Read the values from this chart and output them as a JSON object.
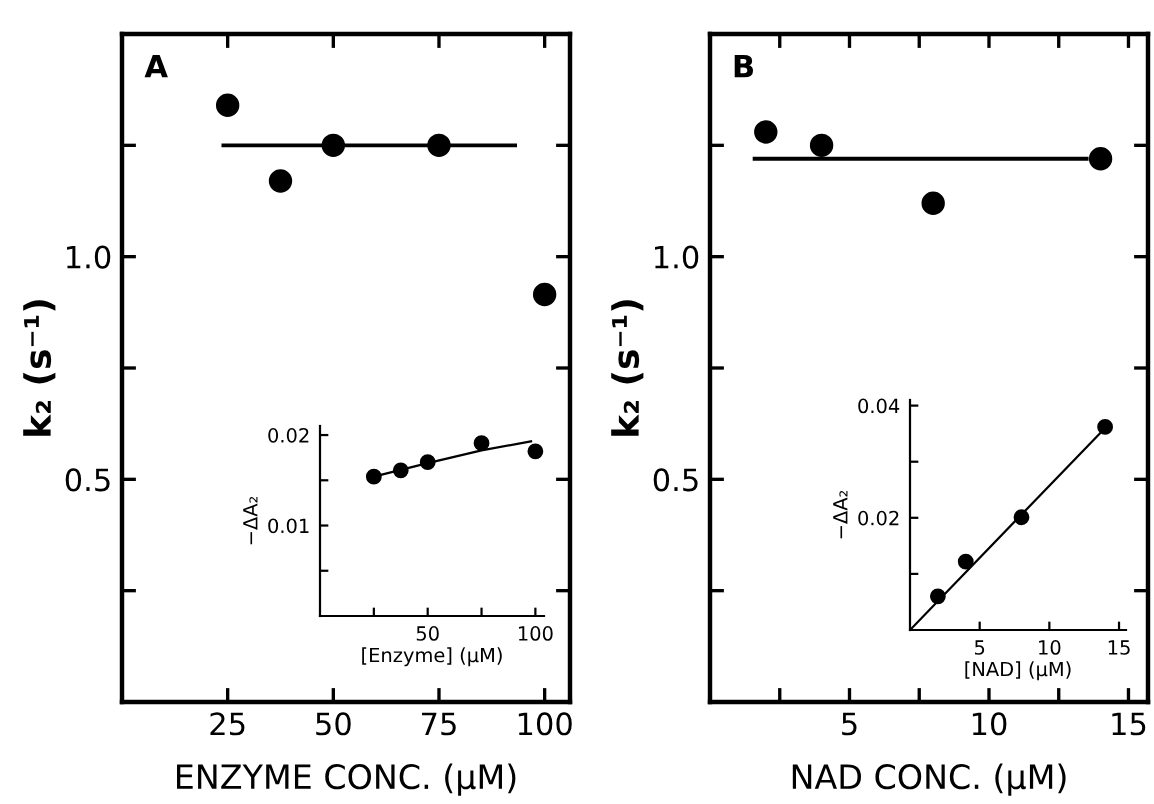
{
  "chart_data": [
    {
      "type": "scatter",
      "title": "A",
      "xlabel": "ENZYME CONC. (μM)",
      "ylabel": "k₂ (s⁻¹)",
      "xlim": [
        0,
        106
      ],
      "ylim": [
        0,
        1.5
      ],
      "xticks": [
        25,
        50,
        75,
        100
      ],
      "yticks": [
        {
          "value": 0.25,
          "label": null
        },
        0.5,
        {
          "value": 0.75,
          "label": null
        },
        {
          "value": 1.0,
          "label": "1.0"
        },
        {
          "value": 1.25,
          "label": null
        }
      ],
      "series": [
        {
          "color": "#000000",
          "marker": "circle",
          "x": [
            25,
            37.5,
            50,
            75,
            100
          ],
          "values": [
            1.34,
            1.17,
            1.25,
            1.25,
            0.915
          ]
        },
        {
          "type": "line",
          "marker": "none",
          "color": "#000000",
          "line_style": "solid",
          "x": [
            24,
            93
          ],
          "values": [
            1.25,
            1.25
          ]
        }
      ]
    },
    {
      "type": "scatter",
      "xlabel": "[Enzyme] (μM)",
      "ylabel": "−ΔA₂",
      "xlim": [
        0,
        104
      ],
      "ylim": [
        0,
        0.021
      ],
      "xticks": [
        {
          "value": 25,
          "label": null
        },
        50,
        {
          "value": 75,
          "label": null
        },
        100
      ],
      "yticks": [
        {
          "value": 0.005,
          "label": null
        },
        0.01,
        {
          "value": 0.015,
          "label": null
        },
        0.02
      ],
      "series": [
        {
          "color": "#000000",
          "marker": "circle",
          "x": [
            25,
            37.5,
            50,
            75,
            100
          ],
          "values": [
            0.0154,
            0.0161,
            0.017,
            0.0191,
            0.0182
          ]
        },
        {
          "type": "line",
          "marker": "none",
          "color": "#000000",
          "line_style": "solid",
          "x": [
            25,
            50,
            75,
            98
          ],
          "values": [
            0.0154,
            0.0169,
            0.0183,
            0.0193
          ]
        }
      ]
    },
    {
      "type": "scatter",
      "title": "B",
      "xlabel": "NAD CONC. (μM)",
      "ylabel": "k₂ (s⁻¹)",
      "xlim": [
        0,
        15.7
      ],
      "ylim": [
        0,
        1.5
      ],
      "xticks": [
        {
          "value": 2.5,
          "label": null
        },
        5,
        {
          "value": 7.5,
          "label": null
        },
        10,
        {
          "value": 12.5,
          "label": null
        },
        15
      ],
      "yticks": [
        {
          "value": 0.25,
          "label": null
        },
        0.5,
        {
          "value": 0.75,
          "label": null
        },
        {
          "value": 1.0,
          "label": "1.0"
        },
        {
          "value": 1.25,
          "label": null
        }
      ],
      "series": [
        {
          "color": "#000000",
          "marker": "circle",
          "x": [
            2,
            4,
            8,
            14
          ],
          "values": [
            1.28,
            1.25,
            1.12,
            1.22
          ]
        },
        {
          "type": "line",
          "marker": "none",
          "color": "#000000",
          "line_style": "solid",
          "x": [
            1.6,
            13.5
          ],
          "values": [
            1.22,
            1.22
          ]
        }
      ]
    },
    {
      "type": "scatter",
      "xlabel": "[NAD] (μM)",
      "ylabel": "−ΔA₂",
      "xlim": [
        0,
        15.5
      ],
      "ylim": [
        0,
        0.041
      ],
      "xticks": [
        5,
        10,
        15
      ],
      "yticks": [
        {
          "value": 0.01,
          "label": null
        },
        0.02,
        {
          "value": 0.03,
          "label": null
        },
        0.04
      ],
      "series": [
        {
          "color": "#000000",
          "marker": "circle",
          "x": [
            2,
            4,
            8,
            14
          ],
          "values": [
            0.006,
            0.0122,
            0.0201,
            0.0362
          ]
        },
        {
          "type": "line",
          "marker": "none",
          "color": "#000000",
          "line_style": "solid",
          "x": [
            0,
            14
          ],
          "values": [
            0,
            0.036
          ]
        }
      ]
    }
  ]
}
